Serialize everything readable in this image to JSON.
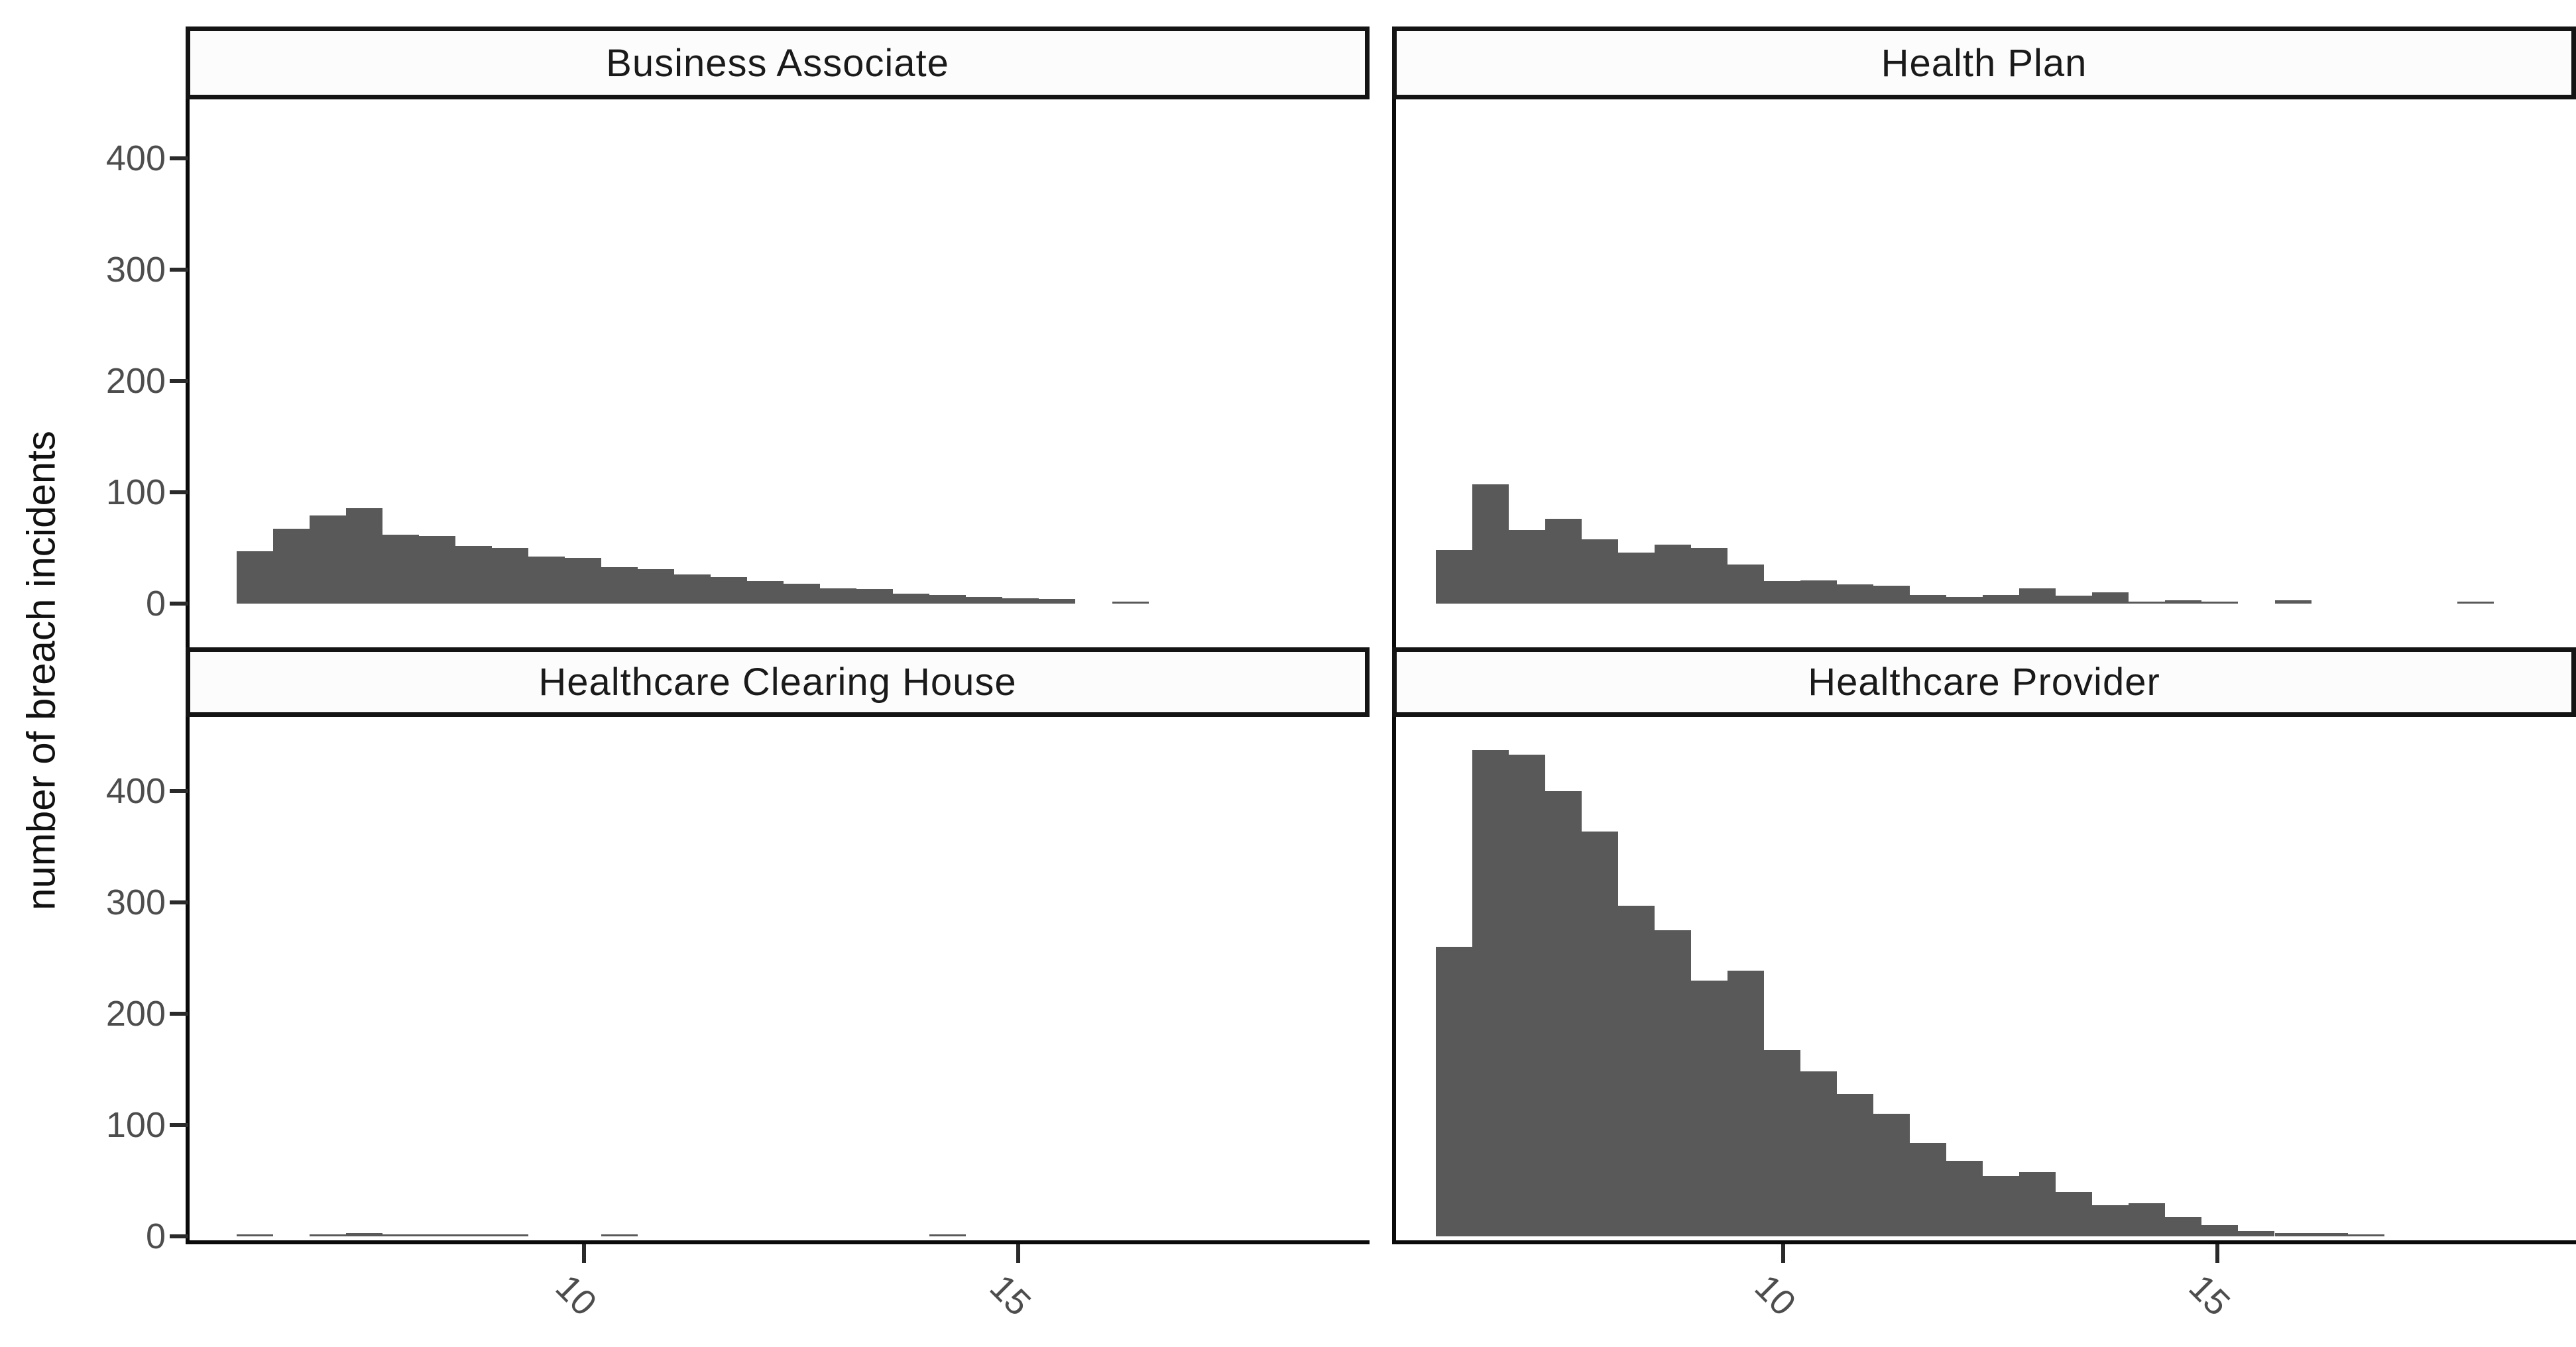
{
  "y_axis_title": "number of breach incidents",
  "colors": {
    "bar": "#595959",
    "axis_text": "#4d4d4d",
    "axis_line": "#0a0a0a",
    "strip_border": "#141414",
    "strip_bg": "#fcfcfc",
    "strip_text": "#1a1a1a",
    "page_bg": "#ffffff"
  },
  "chart_data": {
    "type": "bar",
    "subtype": "faceted-histogram",
    "title": "",
    "xlabel": "",
    "ylabel": "number of breach incidents",
    "legend_position": "none",
    "grid": "off",
    "ylim": [
      0,
      455
    ],
    "xlim": [
      5.45,
      19.05
    ],
    "y_tick_values": [
      400,
      300,
      200,
      100,
      0
    ],
    "y_tick_labels": [
      "400",
      "300",
      "200",
      "100",
      "0"
    ],
    "x_tick_values": [
      10,
      15
    ],
    "x_tick_labels": [
      "10",
      "15"
    ],
    "bin_start": 6.0,
    "bin_width": 0.42,
    "facets": [
      {
        "title": "Business Associate",
        "row": 0,
        "col": 0,
        "counts": [
          47,
          67,
          79,
          86,
          62,
          61,
          52,
          50,
          42,
          41,
          33,
          31,
          26,
          24,
          20,
          18,
          14,
          13,
          9,
          8,
          6,
          5,
          4,
          0,
          2,
          0,
          0,
          0,
          0,
          0
        ]
      },
      {
        "title": "Health Plan",
        "row": 0,
        "col": 1,
        "counts": [
          48,
          107,
          66,
          76,
          58,
          46,
          53,
          50,
          35,
          20,
          21,
          17,
          16,
          8,
          6,
          8,
          14,
          7,
          10,
          2,
          3,
          2,
          0,
          3,
          0,
          0,
          0,
          0,
          2,
          0
        ]
      },
      {
        "title": "Healthcare Clearing House",
        "row": 1,
        "col": 0,
        "counts": [
          2,
          0,
          2,
          3,
          2,
          2,
          2,
          2,
          0,
          0,
          2,
          0,
          0,
          0,
          0,
          0,
          0,
          0,
          0,
          2,
          0,
          0,
          0,
          0,
          0,
          0,
          0,
          0,
          0,
          0
        ]
      },
      {
        "title": "Healthcare Provider",
        "row": 1,
        "col": 1,
        "counts": [
          260,
          437,
          433,
          400,
          364,
          297,
          275,
          230,
          239,
          167,
          148,
          128,
          110,
          84,
          68,
          54,
          58,
          40,
          28,
          30,
          17,
          10,
          5,
          3,
          3,
          2,
          0,
          0,
          0,
          0
        ]
      }
    ]
  }
}
